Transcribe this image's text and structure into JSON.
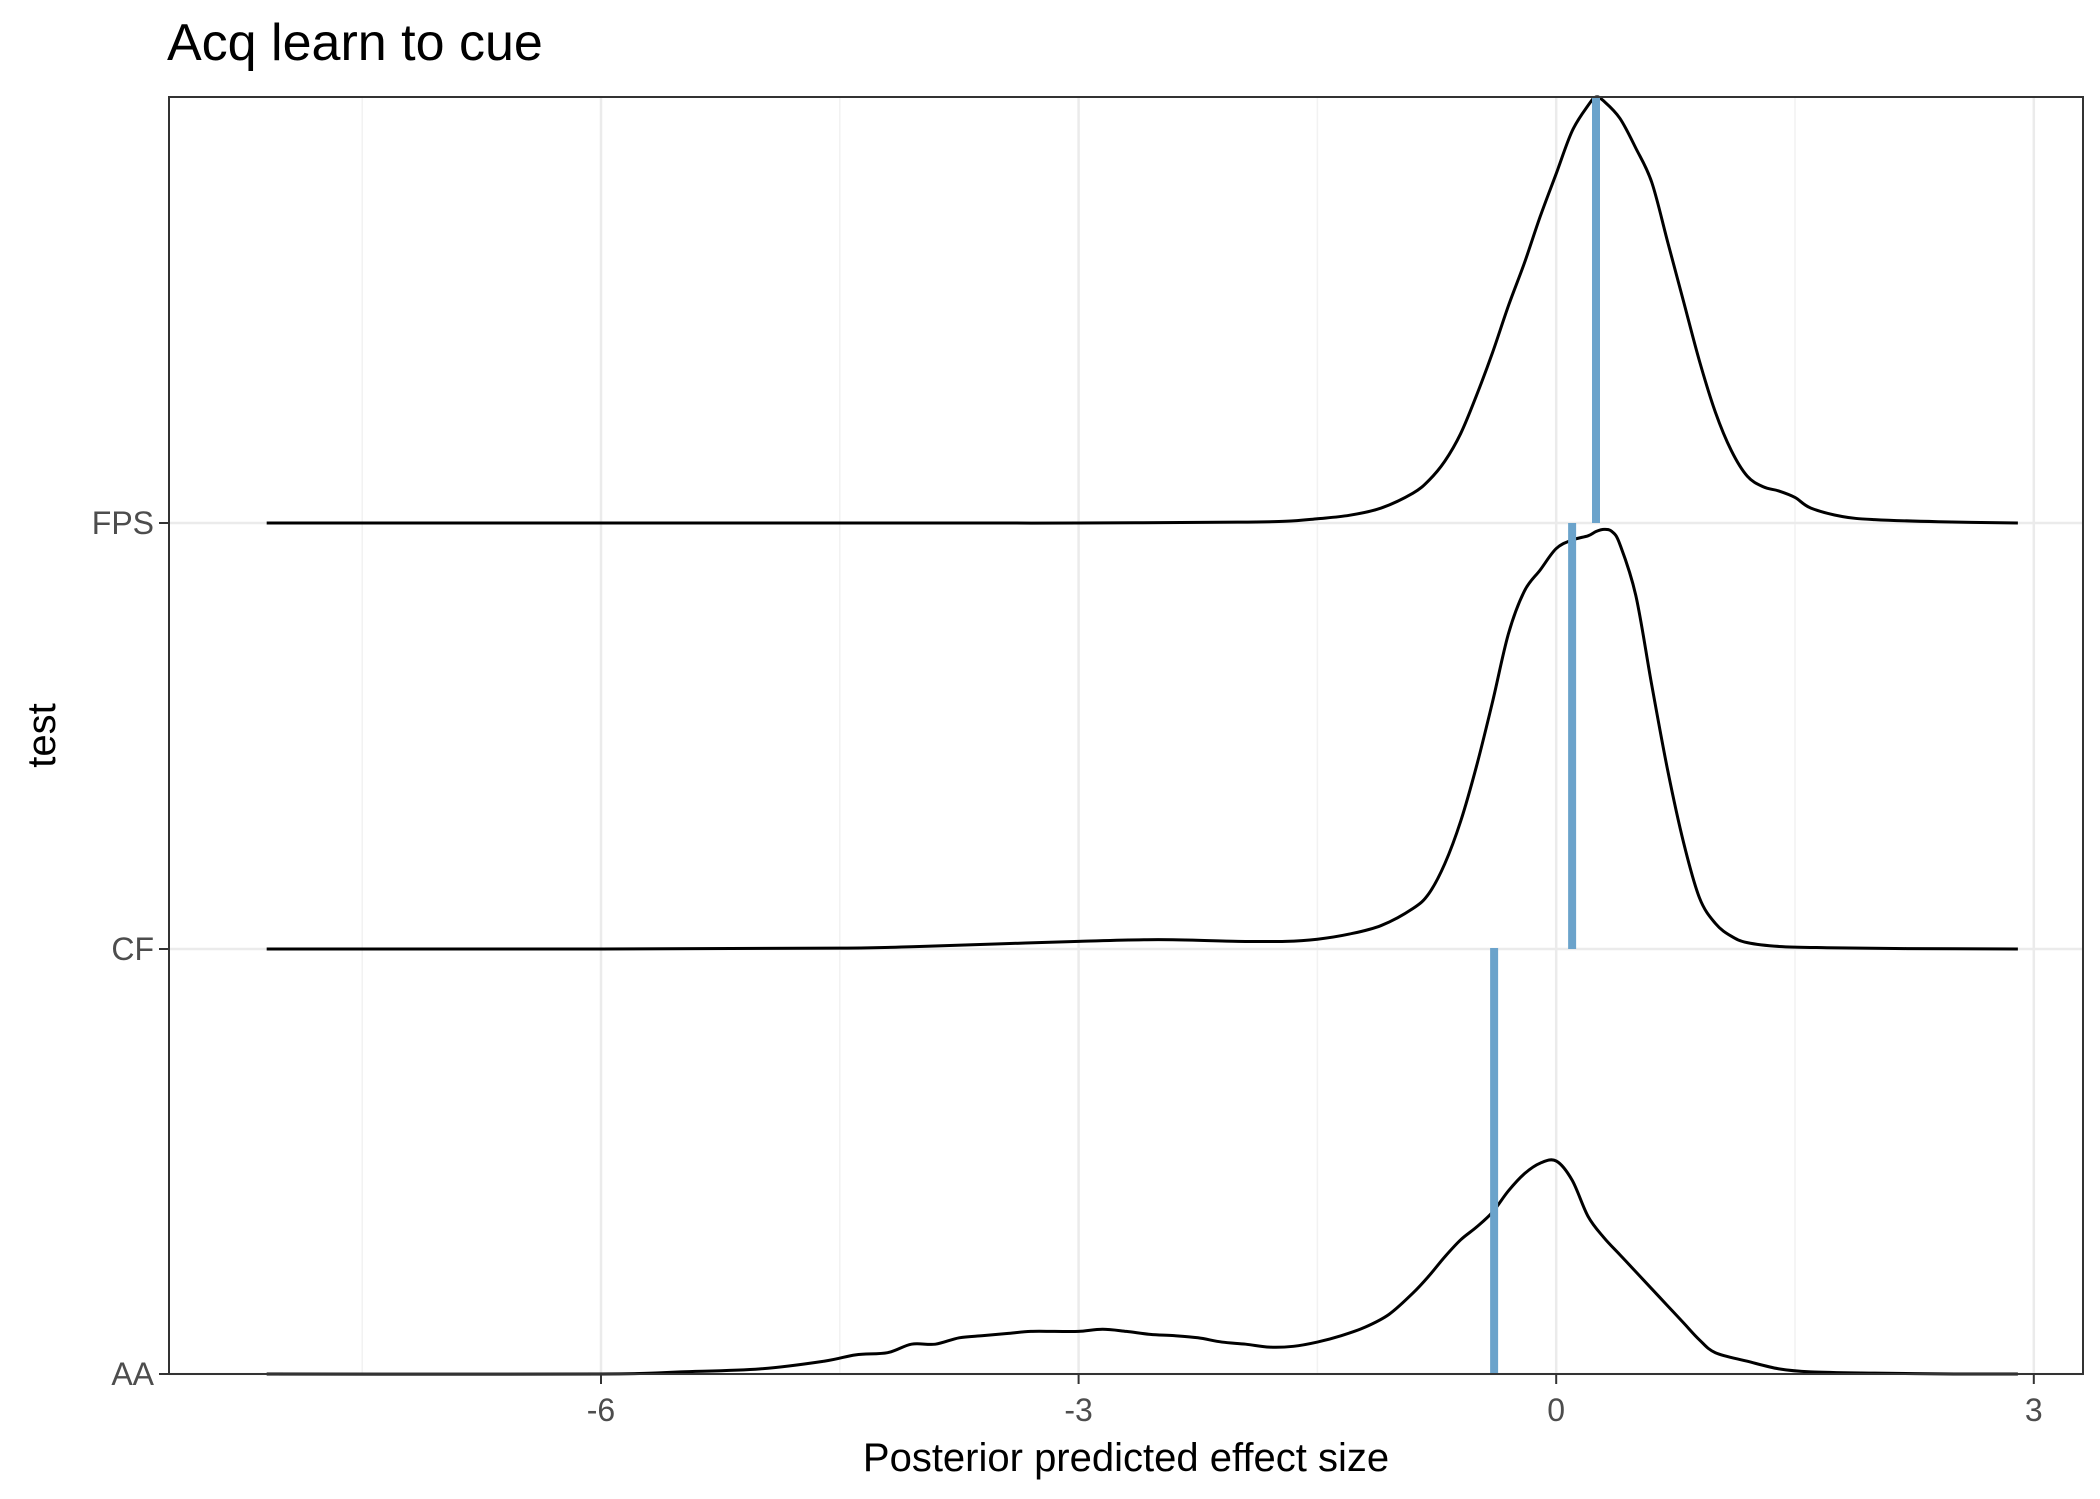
{
  "chart_data": {
    "type": "area",
    "subtype": "ridgeline-density",
    "title": "Acq learn to cue",
    "xlabel": "Posterior predicted effect size",
    "ylabel": "test",
    "xlim": [
      -8.7,
      3.4
    ],
    "x_ticks": [
      -6,
      -3,
      0,
      3
    ],
    "x_tick_labels": [
      "-6",
      "-3",
      "0",
      "3"
    ],
    "categories": [
      "AA",
      "CF",
      "FPS"
    ],
    "grid": true,
    "theme": "bw",
    "reference_line_color": "#6ba3cb",
    "series": [
      {
        "name": "AA",
        "mean": -0.39,
        "density_x": [
          -8.1,
          -6.0,
          -5.5,
          -5.0,
          -4.6,
          -4.4,
          -4.2,
          -4.05,
          -3.9,
          -3.75,
          -3.6,
          -3.45,
          -3.3,
          -3.15,
          -3.0,
          -2.85,
          -2.7,
          -2.55,
          -2.4,
          -2.25,
          -2.1,
          -1.95,
          -1.8,
          -1.65,
          -1.5,
          -1.35,
          -1.2,
          -1.05,
          -0.9,
          -0.8,
          -0.7,
          -0.6,
          -0.5,
          -0.4,
          -0.3,
          -0.2,
          -0.1,
          0.0,
          0.1,
          0.2,
          0.3,
          0.4,
          0.5,
          0.6,
          0.7,
          0.8,
          0.9,
          1.0,
          1.2,
          1.4,
          1.6,
          2.0,
          2.5,
          2.9
        ],
        "density": [
          0.0,
          0.0,
          0.005,
          0.012,
          0.03,
          0.045,
          0.05,
          0.07,
          0.07,
          0.085,
          0.09,
          0.095,
          0.1,
          0.1,
          0.1,
          0.105,
          0.1,
          0.093,
          0.09,
          0.085,
          0.075,
          0.07,
          0.063,
          0.065,
          0.075,
          0.09,
          0.11,
          0.14,
          0.19,
          0.23,
          0.275,
          0.315,
          0.345,
          0.38,
          0.43,
          0.47,
          0.495,
          0.5,
          0.455,
          0.37,
          0.32,
          0.28,
          0.24,
          0.2,
          0.16,
          0.12,
          0.08,
          0.05,
          0.03,
          0.012,
          0.005,
          0.002,
          0.0,
          0.0
        ]
      },
      {
        "name": "CF",
        "mean": 0.1,
        "density_x": [
          -8.1,
          -6.0,
          -4.5,
          -4.0,
          -3.5,
          -3.0,
          -2.5,
          -2.0,
          -1.7,
          -1.5,
          -1.3,
          -1.1,
          -0.9,
          -0.8,
          -0.7,
          -0.6,
          -0.5,
          -0.4,
          -0.3,
          -0.2,
          -0.1,
          0.0,
          0.1,
          0.2,
          0.25,
          0.3,
          0.35,
          0.4,
          0.5,
          0.6,
          0.7,
          0.8,
          0.9,
          1.0,
          1.1,
          1.2,
          1.4,
          1.7,
          2.2,
          2.9
        ],
        "density": [
          0.0,
          0.0,
          0.002,
          0.006,
          0.012,
          0.018,
          0.022,
          0.018,
          0.018,
          0.023,
          0.035,
          0.055,
          0.095,
          0.13,
          0.2,
          0.3,
          0.43,
          0.58,
          0.74,
          0.84,
          0.89,
          0.94,
          0.96,
          0.97,
          0.98,
          0.985,
          0.98,
          0.95,
          0.83,
          0.62,
          0.42,
          0.25,
          0.12,
          0.06,
          0.03,
          0.015,
          0.006,
          0.003,
          0.001,
          0.0
        ]
      },
      {
        "name": "FPS",
        "mean": 0.25,
        "density_x": [
          -8.1,
          -6.0,
          -4.0,
          -3.0,
          -2.0,
          -1.7,
          -1.5,
          -1.3,
          -1.1,
          -0.9,
          -0.8,
          -0.7,
          -0.6,
          -0.5,
          -0.4,
          -0.3,
          -0.2,
          -0.1,
          0.0,
          0.1,
          0.2,
          0.25,
          0.3,
          0.4,
          0.5,
          0.6,
          0.7,
          0.8,
          0.9,
          1.0,
          1.1,
          1.2,
          1.3,
          1.4,
          1.5,
          1.6,
          1.8,
          2.0,
          2.4,
          2.9
        ],
        "density": [
          0.0,
          0.0,
          0.0,
          0.0,
          0.002,
          0.004,
          0.01,
          0.018,
          0.035,
          0.07,
          0.1,
          0.145,
          0.21,
          0.3,
          0.4,
          0.51,
          0.61,
          0.72,
          0.82,
          0.92,
          0.98,
          1.0,
          0.99,
          0.95,
          0.88,
          0.8,
          0.66,
          0.52,
          0.38,
          0.26,
          0.17,
          0.11,
          0.085,
          0.075,
          0.06,
          0.035,
          0.015,
          0.008,
          0.003,
          0.0
        ]
      }
    ]
  }
}
